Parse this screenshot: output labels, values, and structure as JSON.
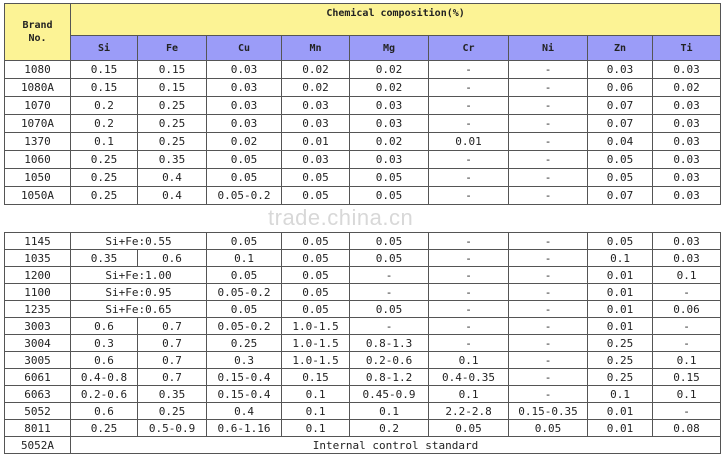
{
  "header": {
    "brand_label_1": "Brand",
    "brand_label_2": "No.",
    "group_label": "Chemical composition(%)",
    "elements": [
      "Si",
      "Fe",
      "Cu",
      "Mn",
      "Mg",
      "Cr",
      "Ni",
      "Zn",
      "Ti"
    ]
  },
  "rows_top": [
    [
      "1080",
      "0.15",
      "0.15",
      "0.03",
      "0.02",
      "0.02",
      "-",
      "-",
      "0.03",
      "0.03"
    ],
    [
      "1080A",
      "0.15",
      "0.15",
      "0.03",
      "0.02",
      "0.02",
      "-",
      "-",
      "0.06",
      "0.02"
    ],
    [
      "1070",
      "0.2",
      "0.25",
      "0.03",
      "0.03",
      "0.03",
      "-",
      "-",
      "0.07",
      "0.03"
    ],
    [
      "1070A",
      "0.2",
      "0.25",
      "0.03",
      "0.03",
      "0.03",
      "-",
      "-",
      "0.07",
      "0.03"
    ],
    [
      "1370",
      "0.1",
      "0.25",
      "0.02",
      "0.01",
      "0.02",
      "0.01",
      "-",
      "0.04",
      "0.03"
    ],
    [
      "1060",
      "0.25",
      "0.35",
      "0.05",
      "0.03",
      "0.03",
      "-",
      "-",
      "0.05",
      "0.03"
    ],
    [
      "1050",
      "0.25",
      "0.4",
      "0.05",
      "0.05",
      "0.05",
      "-",
      "-",
      "0.05",
      "0.03"
    ],
    [
      "1050A",
      "0.25",
      "0.4",
      "0.05-0.2",
      "0.05",
      "0.05",
      "-",
      "-",
      "0.07",
      "0.03"
    ]
  ],
  "rows_bottom": [
    [
      "1145",
      "Si+Fe:0.55",
      null,
      "0.05",
      "0.05",
      "0.05",
      "-",
      "-",
      "0.05",
      "0.03"
    ],
    [
      "1035",
      "0.35",
      "0.6",
      "0.1",
      "0.05",
      "0.05",
      "-",
      "-",
      "0.1",
      "0.03"
    ],
    [
      "1200",
      "Si+Fe:1.00",
      null,
      "0.05",
      "0.05",
      "-",
      "-",
      "-",
      "0.01",
      "0.1"
    ],
    [
      "1100",
      "Si+Fe:0.95",
      null,
      "0.05-0.2",
      "0.05",
      "-",
      "-",
      "-",
      "0.01",
      "-"
    ],
    [
      "1235",
      "Si+Fe:0.65",
      null,
      "0.05",
      "0.05",
      "0.05",
      "-",
      "-",
      "0.01",
      "0.06"
    ],
    [
      "3003",
      "0.6",
      "0.7",
      "0.05-0.2",
      "1.0-1.5",
      "-",
      "-",
      "-",
      "0.01",
      "-"
    ],
    [
      "3004",
      "0.3",
      "0.7",
      "0.25",
      "1.0-1.5",
      "0.8-1.3",
      "-",
      "-",
      "0.25",
      "-"
    ],
    [
      "3005",
      "0.6",
      "0.7",
      "0.3",
      "1.0-1.5",
      "0.2-0.6",
      "0.1",
      "-",
      "0.25",
      "0.1"
    ],
    [
      "6061",
      "0.4-0.8",
      "0.7",
      "0.15-0.4",
      "0.15",
      "0.8-1.2",
      "0.4-0.35",
      "-",
      "0.25",
      "0.15"
    ],
    [
      "6063",
      "0.2-0.6",
      "0.35",
      "0.15-0.4",
      "0.1",
      "0.45-0.9",
      "0.1",
      "-",
      "0.1",
      "0.1"
    ],
    [
      "5052",
      "0.6",
      "0.25",
      "0.4",
      "0.1",
      "0.1",
      "2.2-2.8",
      "0.15-0.35",
      "0.01",
      "-"
    ],
    [
      "8011",
      "0.25",
      "0.5-0.9",
      "0.6-1.16",
      "0.1",
      "0.2",
      "0.05",
      "0.05",
      "0.01",
      "0.08"
    ]
  ],
  "last_row": {
    "brand": "5052A",
    "note": "Internal control standard"
  },
  "watermark": "trade.china.cn"
}
